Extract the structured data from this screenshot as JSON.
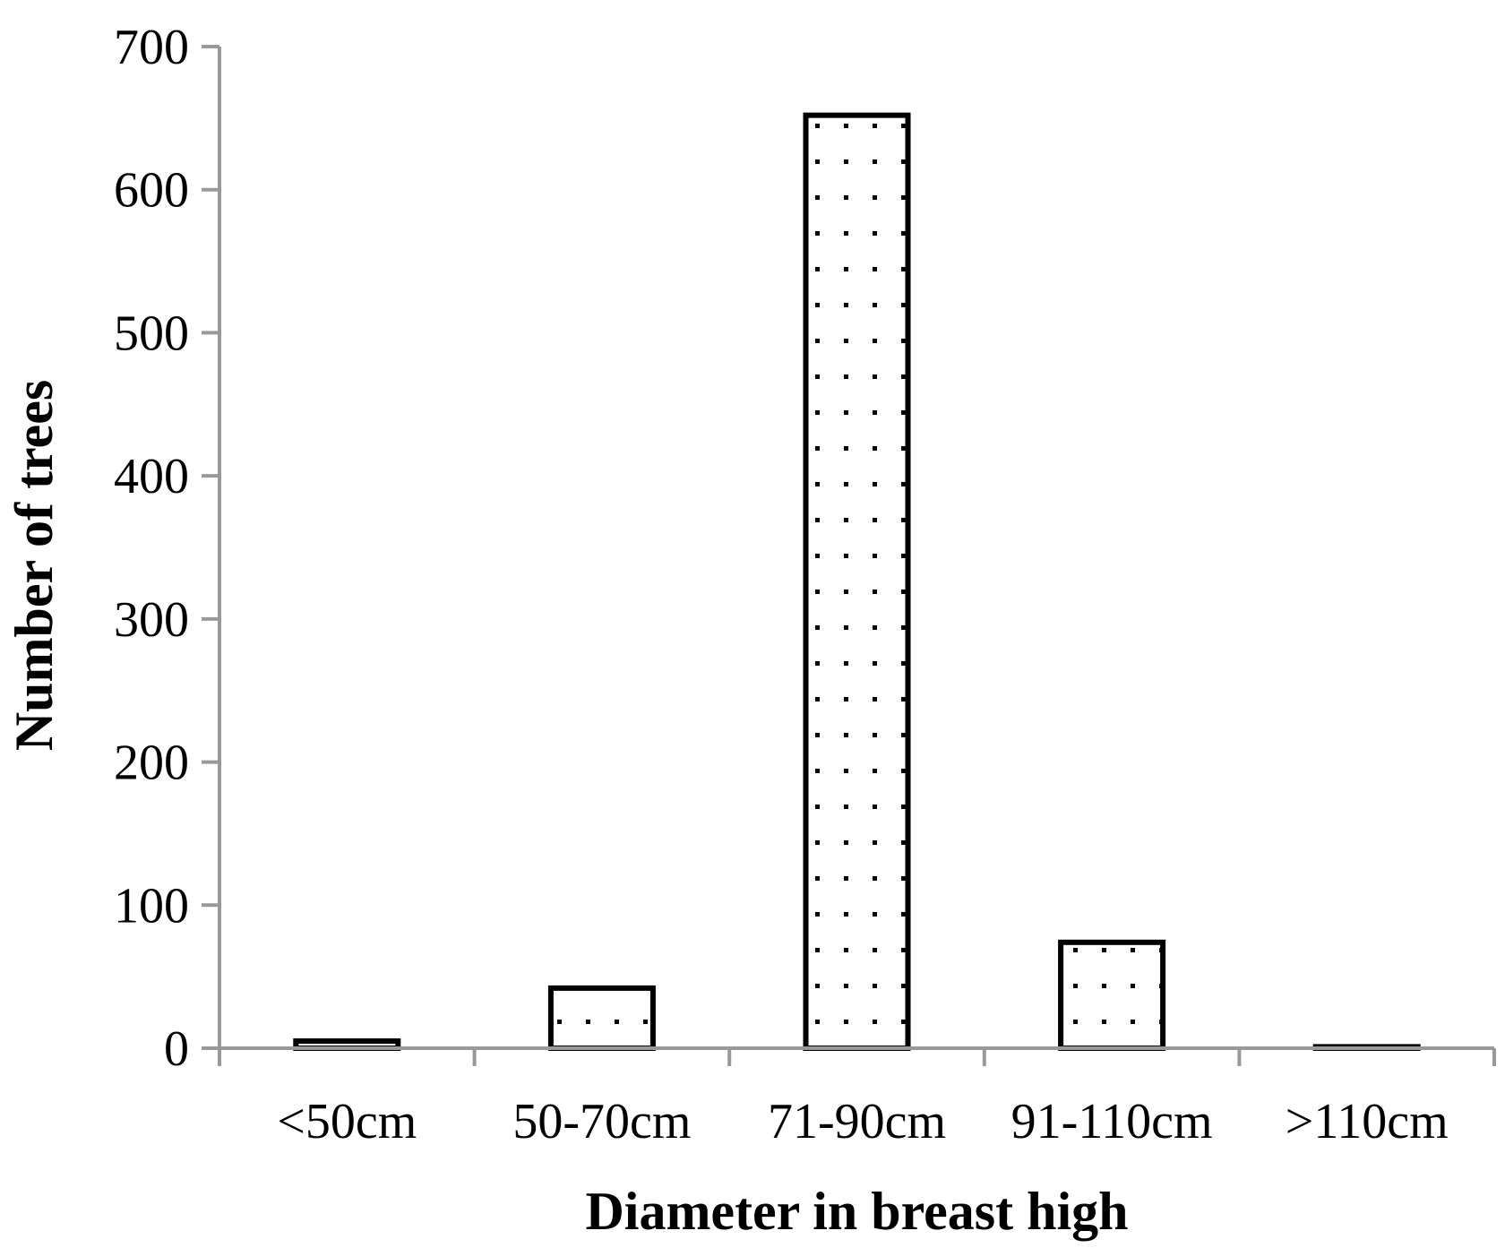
{
  "chart_data": {
    "type": "bar",
    "categories": [
      "<50cm",
      "50-70cm",
      "71-90cm",
      "91-110cm",
      ">110cm"
    ],
    "values": [
      5,
      42,
      652,
      74,
      1
    ],
    "title": "",
    "xlabel": "Diameter in breast high",
    "ylabel": "Number of trees",
    "ylim": [
      0,
      700
    ],
    "yticks": [
      0,
      100,
      200,
      300,
      400,
      500,
      600,
      700
    ],
    "grid": false,
    "legend": "none",
    "bar_fill": "dotted",
    "colors": {
      "bar_stroke": "#000000",
      "dot": "#000000",
      "axis": "#999999"
    }
  }
}
